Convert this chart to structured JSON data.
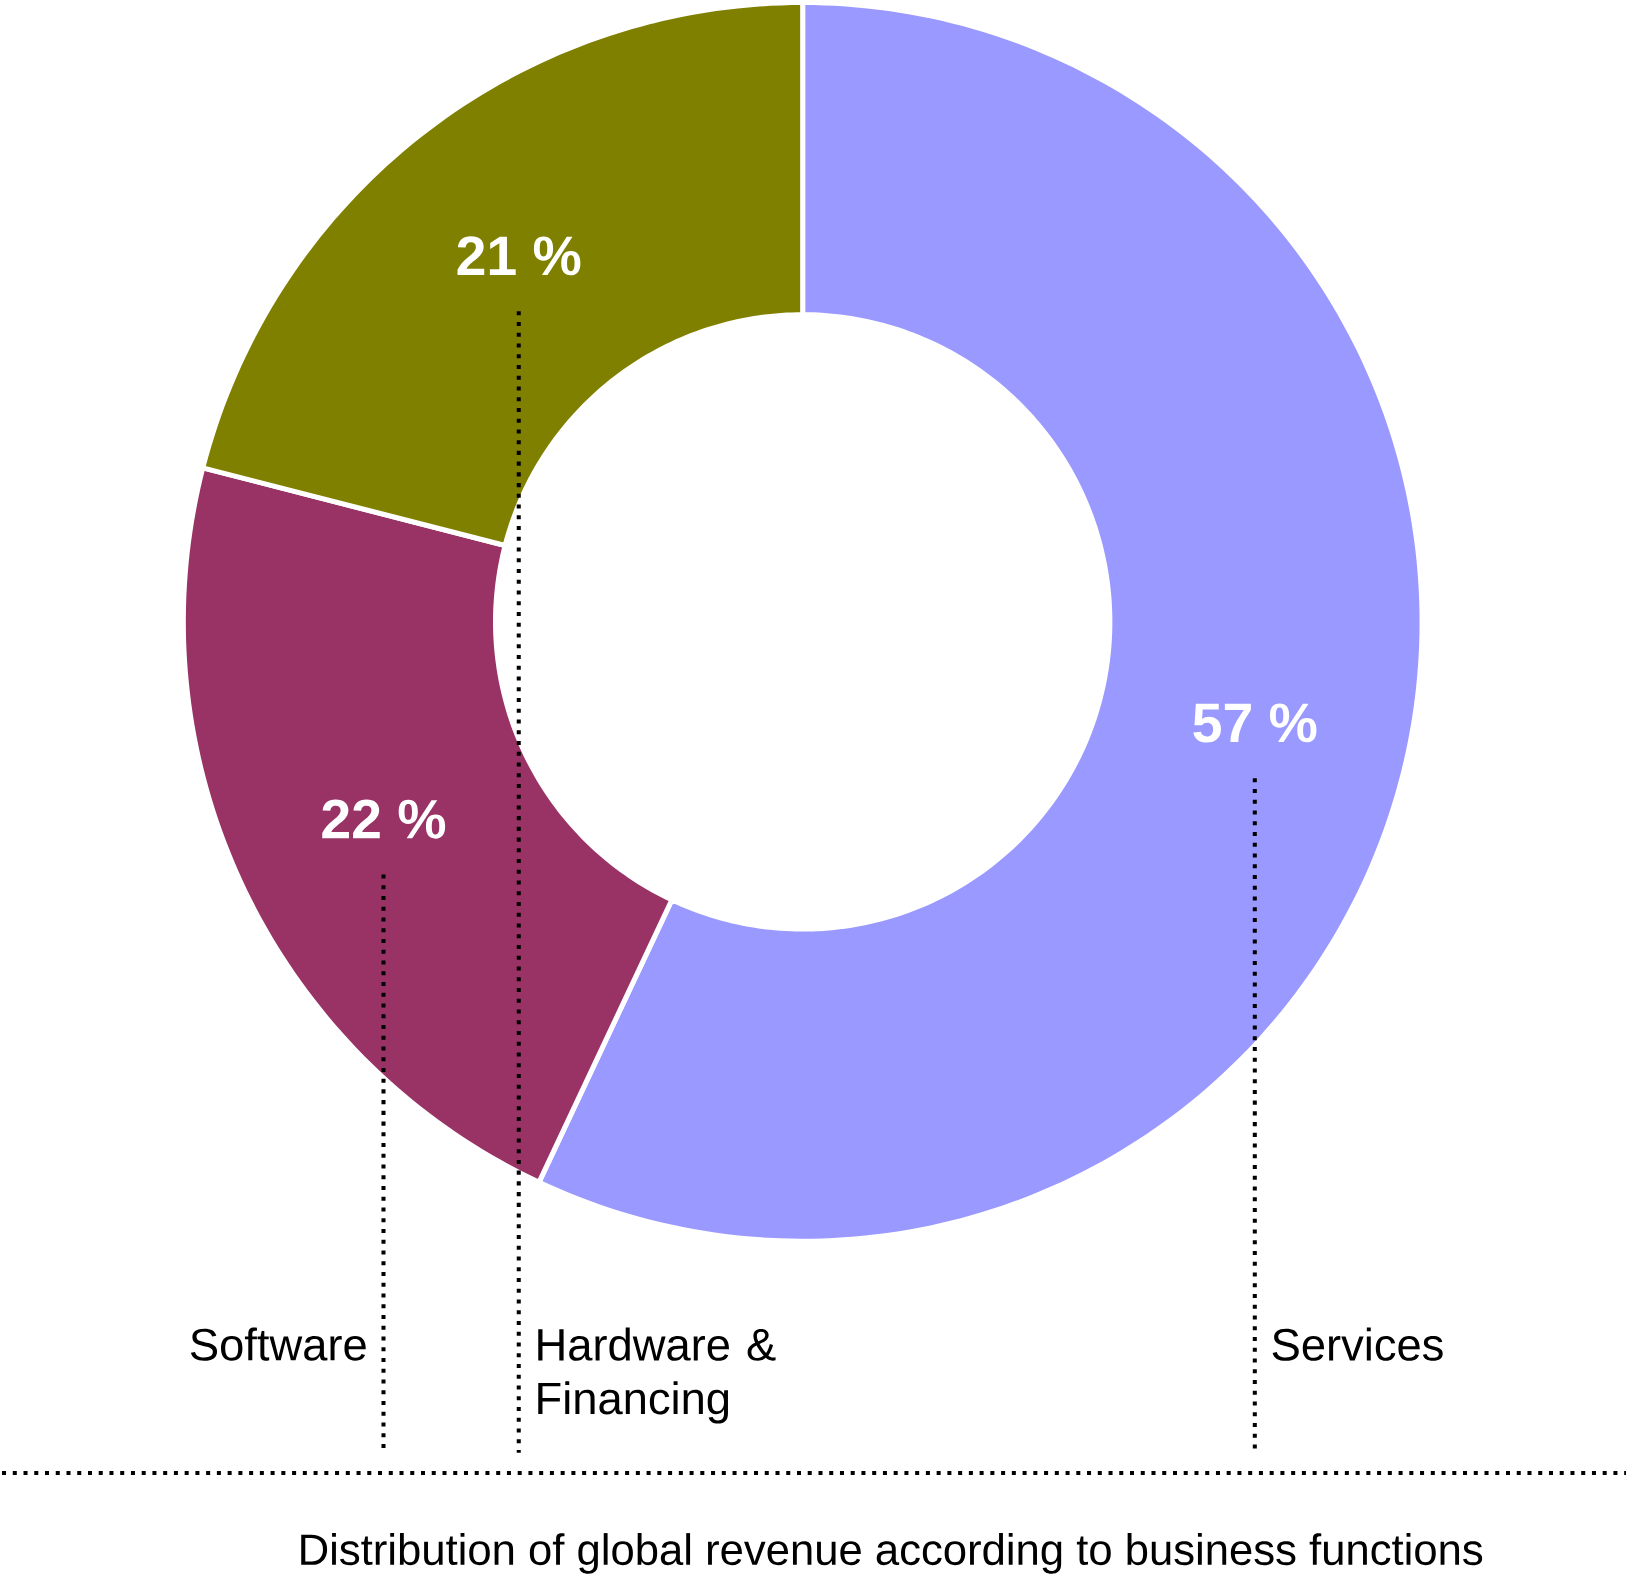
{
  "chart_data": {
    "type": "donut",
    "title": "Distribution of global revenue according to business functions",
    "categories": [
      "Services",
      "Software",
      "Hardware & Financing"
    ],
    "values": [
      57,
      22,
      21
    ],
    "colors": [
      "#9999ff",
      "#993366",
      "#808000"
    ],
    "value_labels": [
      "57 %",
      "22 %",
      "21 %"
    ]
  }
}
